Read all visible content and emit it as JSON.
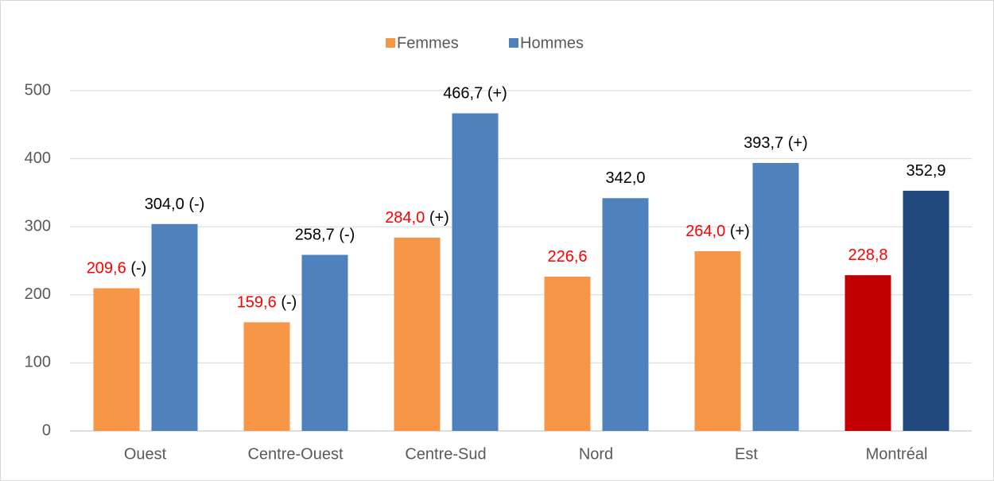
{
  "chart_data": {
    "type": "bar",
    "categories": [
      "Ouest",
      "Centre-Ouest",
      "Centre-Sud",
      "Nord",
      "Est",
      "Montréal"
    ],
    "series": [
      {
        "name": "Femmes",
        "color": "#f79646",
        "label_color": "#ff0000",
        "point_colors": [
          "#f79646",
          "#f79646",
          "#f79646",
          "#f79646",
          "#f79646",
          "#c00000"
        ],
        "values": [
          209.6,
          159.6,
          284.0,
          226.6,
          264.0,
          228.8
        ],
        "value_labels": [
          "209,6",
          "159,6",
          "284,0",
          "226,6",
          "264,0",
          "228,8"
        ],
        "flags": [
          "(-)",
          "(-)",
          "(+)",
          null,
          "(+)",
          null
        ]
      },
      {
        "name": "Hommes",
        "color": "#4f81bd",
        "label_color": "#000000",
        "point_colors": [
          "#4f81bd",
          "#4f81bd",
          "#4f81bd",
          "#4f81bd",
          "#4f81bd",
          "#1f497d"
        ],
        "values": [
          304.0,
          258.7,
          466.7,
          342.0,
          393.7,
          352.9
        ],
        "value_labels": [
          "304,0",
          "258,7",
          "466,7",
          "342,0",
          "393,7",
          "352,9"
        ],
        "flags": [
          "(-)",
          "(-)",
          "(+)",
          null,
          "(+)",
          null
        ]
      }
    ],
    "ylim": [
      0,
      500
    ],
    "yticks": [
      0,
      100,
      200,
      300,
      400,
      500
    ],
    "grid": true,
    "legend": "top"
  }
}
